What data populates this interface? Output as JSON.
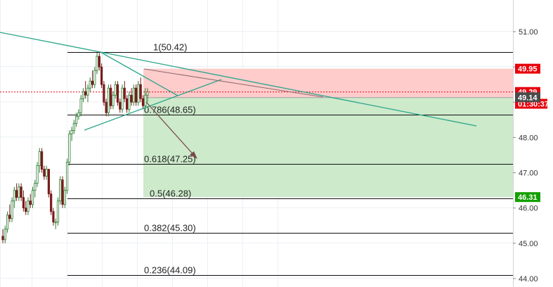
{
  "chart_data": {
    "type": "candlestick",
    "y_axis": {
      "ticks": [
        51.0,
        50.0,
        49.0,
        48.0,
        47.0,
        46.0,
        45.0,
        44.0
      ],
      "tick_labels": [
        "51.00",
        "50.00",
        "49.00",
        "48.00",
        "47.00",
        "46.00",
        "45.00",
        "44.00"
      ],
      "range": [
        43.9,
        51.9
      ]
    },
    "candles": [
      [
        45.2,
        45.4,
        45.0,
        45.1
      ],
      [
        45.1,
        45.5,
        45.0,
        45.4
      ],
      [
        45.4,
        45.9,
        45.3,
        45.8
      ],
      [
        45.8,
        46.1,
        45.6,
        45.7
      ],
      [
        45.7,
        46.3,
        45.6,
        46.2
      ],
      [
        46.2,
        46.6,
        46.0,
        46.5
      ],
      [
        46.5,
        46.7,
        46.2,
        46.3
      ],
      [
        46.3,
        46.7,
        46.2,
        46.6
      ],
      [
        46.6,
        46.7,
        46.2,
        46.3
      ],
      [
        46.3,
        46.5,
        45.9,
        46.0
      ],
      [
        46.0,
        46.2,
        45.8,
        45.9
      ],
      [
        45.9,
        46.3,
        45.8,
        46.2
      ],
      [
        46.2,
        46.4,
        46.0,
        46.1
      ],
      [
        46.1,
        46.6,
        46.0,
        46.5
      ],
      [
        46.5,
        46.8,
        46.3,
        46.7
      ],
      [
        46.7,
        47.3,
        46.6,
        47.2
      ],
      [
        47.2,
        47.7,
        47.0,
        47.6
      ],
      [
        47.6,
        47.7,
        47.0,
        47.1
      ],
      [
        47.1,
        47.2,
        46.8,
        46.9
      ],
      [
        46.9,
        47.2,
        46.8,
        47.1
      ],
      [
        47.1,
        47.1,
        46.3,
        46.4
      ],
      [
        46.4,
        46.5,
        45.8,
        45.9
      ],
      [
        45.9,
        46.0,
        45.5,
        45.6
      ],
      [
        45.6,
        45.7,
        45.4,
        45.6
      ],
      [
        45.6,
        46.3,
        45.5,
        46.2
      ],
      [
        46.2,
        46.9,
        46.1,
        46.8
      ],
      [
        46.8,
        46.9,
        46.0,
        46.1
      ],
      [
        46.1,
        46.6,
        46.0,
        46.5
      ],
      [
        46.5,
        47.4,
        46.4,
        47.3
      ],
      [
        47.3,
        48.2,
        47.2,
        48.1
      ],
      [
        48.1,
        48.3,
        47.9,
        48.2
      ],
      [
        48.2,
        48.5,
        48.1,
        48.4
      ],
      [
        48.4,
        48.7,
        48.3,
        48.6
      ],
      [
        48.6,
        48.8,
        48.5,
        48.7
      ],
      [
        48.7,
        49.2,
        48.6,
        49.1
      ],
      [
        49.1,
        49.4,
        49.0,
        49.3
      ],
      [
        49.3,
        49.6,
        49.1,
        49.2
      ],
      [
        49.2,
        49.5,
        49.0,
        49.4
      ],
      [
        49.4,
        49.7,
        49.3,
        49.6
      ],
      [
        49.6,
        49.9,
        49.4,
        49.5
      ],
      [
        49.5,
        50.0,
        49.4,
        49.9
      ],
      [
        49.9,
        50.4,
        49.8,
        50.3
      ],
      [
        50.3,
        50.42,
        49.9,
        50.0
      ],
      [
        50.0,
        50.1,
        49.4,
        49.5
      ],
      [
        49.5,
        49.6,
        48.9,
        49.0
      ],
      [
        49.0,
        49.1,
        48.6,
        48.7
      ],
      [
        48.7,
        49.5,
        48.6,
        49.4
      ],
      [
        49.4,
        49.5,
        48.8,
        48.9
      ],
      [
        48.9,
        49.3,
        48.8,
        49.2
      ],
      [
        49.2,
        49.6,
        49.1,
        49.5
      ],
      [
        49.5,
        49.6,
        48.9,
        49.0
      ],
      [
        49.0,
        49.1,
        48.7,
        48.8
      ],
      [
        48.8,
        49.5,
        48.7,
        49.4
      ],
      [
        49.4,
        49.6,
        49.0,
        49.1
      ],
      [
        49.1,
        49.2,
        48.7,
        48.8
      ],
      [
        48.8,
        49.3,
        48.7,
        49.2
      ],
      [
        49.2,
        49.4,
        48.9,
        49.0
      ],
      [
        49.0,
        49.5,
        48.9,
        49.4
      ],
      [
        49.4,
        49.5,
        48.9,
        49.0
      ],
      [
        49.0,
        49.6,
        48.9,
        49.5
      ],
      [
        49.5,
        49.7,
        49.0,
        49.1
      ],
      [
        49.1,
        49.2,
        48.8,
        48.9
      ],
      [
        48.9,
        49.4,
        48.8,
        49.2
      ],
      [
        49.2,
        49.4,
        49.0,
        49.29
      ]
    ],
    "fibonacci_levels": [
      {
        "ratio": "1",
        "price": 50.42,
        "label": "1(50.42)"
      },
      {
        "ratio": "0.786",
        "price": 48.65,
        "label": "0.786(48.65)"
      },
      {
        "ratio": "0.618",
        "price": 47.25,
        "label": "0.618(47.25)"
      },
      {
        "ratio": "0.5",
        "price": 46.28,
        "label": "0.5(46.28)"
      },
      {
        "ratio": "0.382",
        "price": 45.3,
        "label": "0.382(45.30)"
      },
      {
        "ratio": "0.236",
        "price": 44.09,
        "label": "0.236(44.09)"
      }
    ],
    "position": {
      "stop_loss": 49.95,
      "entry": 49.14,
      "target": 46.31
    },
    "current_price": 49.29,
    "price_tags": [
      {
        "name": "stop-loss-tag",
        "price": 49.95,
        "label": "49.95",
        "color": "#e8000b"
      },
      {
        "name": "current-price-tag",
        "price": 49.29,
        "label": "49.29",
        "color": "#e8000b"
      },
      {
        "name": "countdown-tag",
        "price": 48.95,
        "label": "01:30:37",
        "color": "#e8000b"
      },
      {
        "name": "entry-price-tag",
        "price": 49.14,
        "label": "49.14",
        "color": "#4a4a4a"
      },
      {
        "name": "target-price-tag",
        "price": 46.31,
        "label": "46.31",
        "color": "#13a000"
      }
    ],
    "colors": {
      "up_body": "#ffffff",
      "down_body": "#7a1b1b",
      "up_border": "#2e7d32",
      "down_border": "#7a1b1b",
      "trendline": "#2aa58a",
      "projection": "#7a4a4a",
      "stop_zone": "#ffcccc",
      "target_zone": "#cdeacb",
      "grid": "#ecf0f4"
    }
  }
}
